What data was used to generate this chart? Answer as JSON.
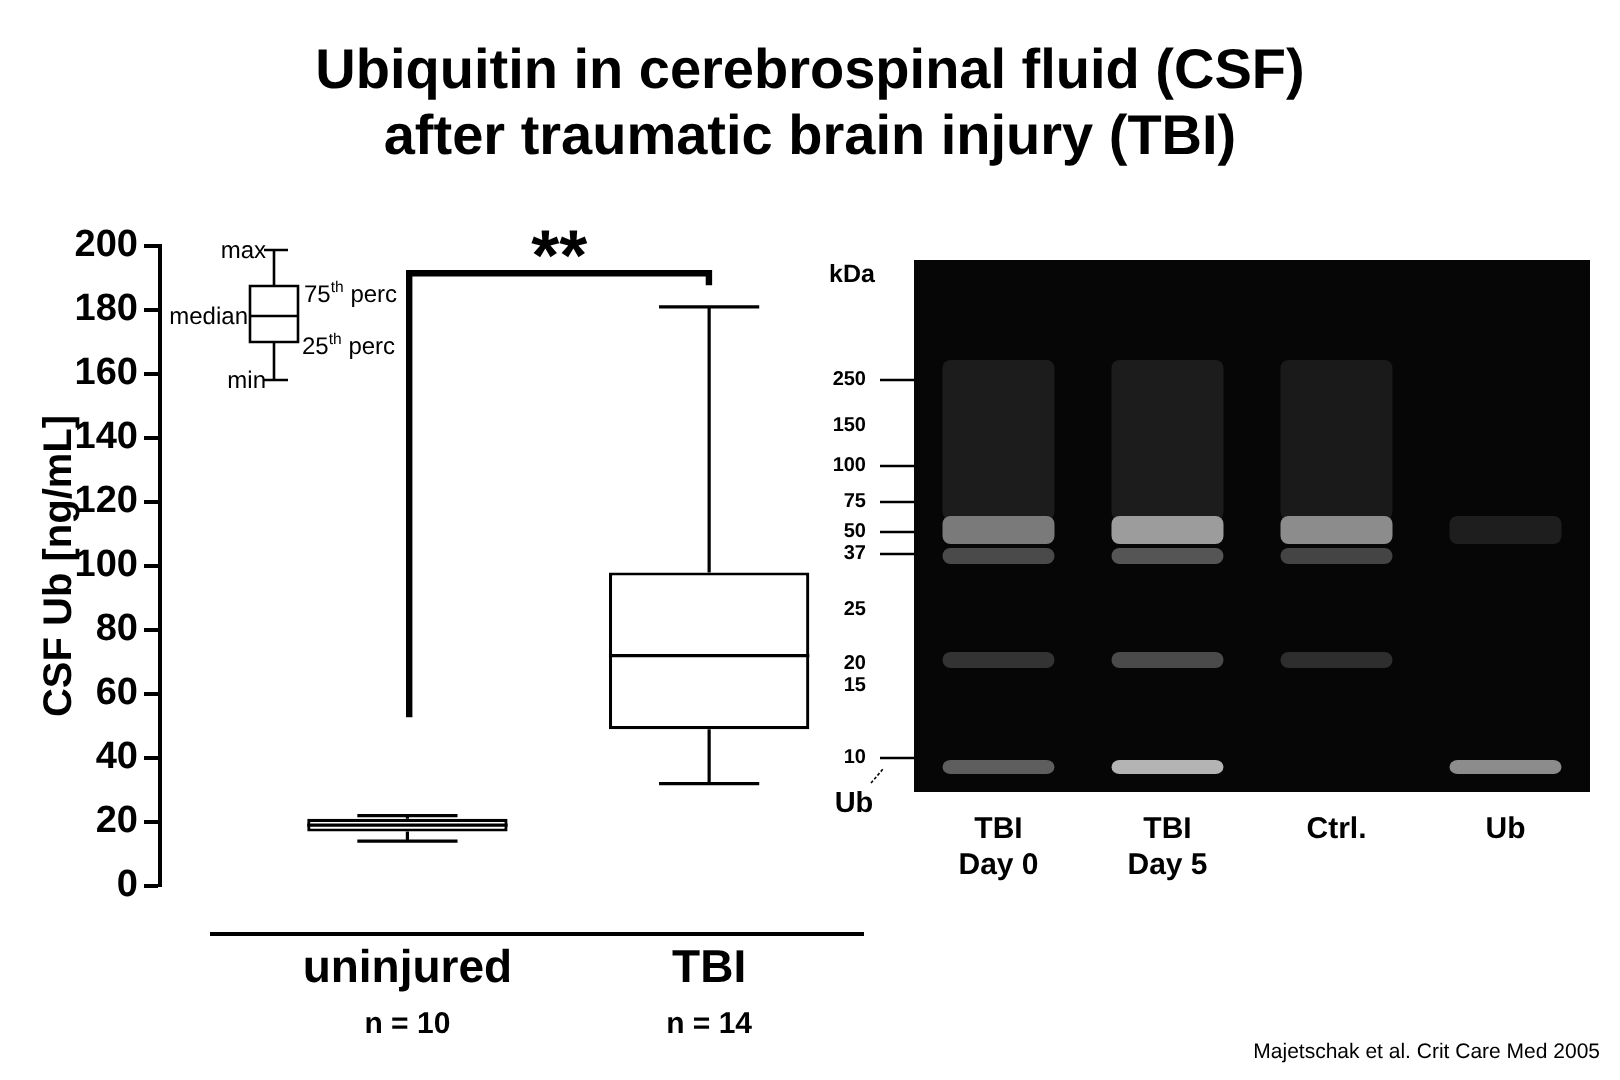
{
  "chart_data": [
    {
      "type": "box",
      "title": "Ubiquitin in cerebrospinal fluid (CSF) after traumatic brain injury (TBI)",
      "ylabel": "CSF Ub [ng/mL]",
      "categories": [
        "uninjured",
        "TBI"
      ],
      "color": "#000000",
      "boxes": [
        {
          "low": 14,
          "q1": 17,
          "median": 19,
          "q3": 21,
          "high": 22
        },
        {
          "low": 32,
          "q1": 49,
          "median": 72,
          "q3": 98,
          "high": 181
        }
      ],
      "ylim": [
        0,
        200
      ],
      "yticks": [
        0,
        20,
        40,
        60,
        80,
        100,
        120,
        140,
        160,
        180,
        200
      ],
      "annotations": [
        "max",
        "75$^{th}$ perc",
        "median",
        "25$^{th}$ perc",
        "min",
        "**",
        "n = 10",
        "n = 14",
        "Majetschak et al. Crit Care Med 2005"
      ]
    },
    {
      "type": "other",
      "ylabel": "kDa",
      "categories": [
        "TBI Day 0",
        "TBI Day 5",
        "Ctrl.",
        "Ub"
      ],
      "annotations": [
        "250",
        "150",
        "100",
        "75",
        "50",
        "37",
        "25",
        "20",
        "15",
        "10",
        "Ub"
      ]
    }
  ]
}
